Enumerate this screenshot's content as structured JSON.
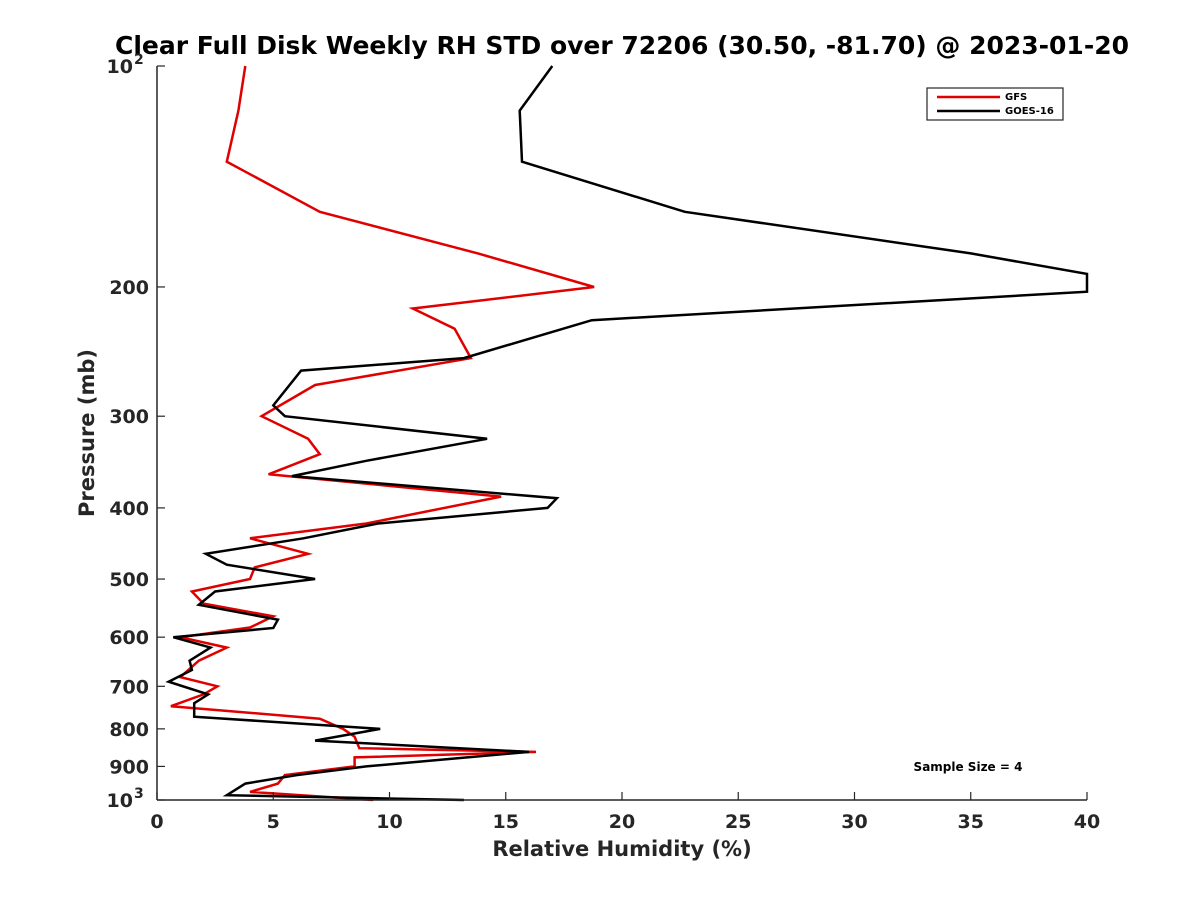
{
  "chart_data": {
    "type": "line",
    "title": "Clear Full Disk Weekly RH STD over 72206 (30.50, -81.70) @ 2023-01-20",
    "xlabel": "Relative Humidity (%)",
    "ylabel": "Pressure (mb)",
    "xlim": [
      0,
      40
    ],
    "ylim": [
      100,
      1000
    ],
    "y_scale": "log",
    "y_reversed": true,
    "grid": false,
    "legend_position": "top-right",
    "x_ticks": [
      0,
      5,
      10,
      15,
      20,
      25,
      30,
      35,
      40
    ],
    "x_tick_labels": [
      "0",
      "5",
      "10",
      "15",
      "20",
      "25",
      "30",
      "35",
      "40"
    ],
    "y_ticks": [
      100,
      200,
      300,
      400,
      500,
      600,
      700,
      800,
      900,
      1000
    ],
    "y_tick_labels": [
      {
        "base": "10",
        "exp": "2"
      },
      {
        "base": "200",
        "exp": ""
      },
      {
        "base": "300",
        "exp": ""
      },
      {
        "base": "400",
        "exp": ""
      },
      {
        "base": "500",
        "exp": ""
      },
      {
        "base": "600",
        "exp": ""
      },
      {
        "base": "700",
        "exp": ""
      },
      {
        "base": "800",
        "exp": ""
      },
      {
        "base": "900",
        "exp": ""
      },
      {
        "base": "10",
        "exp": "3"
      }
    ],
    "annotation": "Sample Size = 4",
    "series": [
      {
        "name": "GFS",
        "color": "#e00000",
        "points": [
          {
            "p": 100,
            "x": 3.8
          },
          {
            "p": 115,
            "x": 3.5
          },
          {
            "p": 135,
            "x": 3.0
          },
          {
            "p": 158,
            "x": 7.0
          },
          {
            "p": 180,
            "x": 13.8
          },
          {
            "p": 200,
            "x": 18.8
          },
          {
            "p": 214,
            "x": 11.0
          },
          {
            "p": 228,
            "x": 12.8
          },
          {
            "p": 250,
            "x": 13.5
          },
          {
            "p": 272,
            "x": 6.8
          },
          {
            "p": 300,
            "x": 4.5
          },
          {
            "p": 322,
            "x": 6.5
          },
          {
            "p": 338,
            "x": 7.0
          },
          {
            "p": 360,
            "x": 4.8
          },
          {
            "p": 386,
            "x": 14.8
          },
          {
            "p": 420,
            "x": 9.0
          },
          {
            "p": 440,
            "x": 4.0
          },
          {
            "p": 462,
            "x": 6.5
          },
          {
            "p": 482,
            "x": 4.2
          },
          {
            "p": 500,
            "x": 4.0
          },
          {
            "p": 520,
            "x": 1.5
          },
          {
            "p": 540,
            "x": 2.0
          },
          {
            "p": 562,
            "x": 5.0
          },
          {
            "p": 582,
            "x": 4.0
          },
          {
            "p": 600,
            "x": 1.0
          },
          {
            "p": 620,
            "x": 3.0
          },
          {
            "p": 646,
            "x": 1.8
          },
          {
            "p": 680,
            "x": 1.0
          },
          {
            "p": 700,
            "x": 2.6
          },
          {
            "p": 718,
            "x": 2.0
          },
          {
            "p": 745,
            "x": 0.6
          },
          {
            "p": 775,
            "x": 7.0
          },
          {
            "p": 800,
            "x": 8.0
          },
          {
            "p": 820,
            "x": 8.5
          },
          {
            "p": 850,
            "x": 8.7
          },
          {
            "p": 860,
            "x": 16.3
          },
          {
            "p": 875,
            "x": 8.5
          },
          {
            "p": 900,
            "x": 8.5
          },
          {
            "p": 925,
            "x": 5.5
          },
          {
            "p": 950,
            "x": 5.2
          },
          {
            "p": 975,
            "x": 4.0
          },
          {
            "p": 1000,
            "x": 9.3
          }
        ]
      },
      {
        "name": "GOES-16",
        "color": "#000000",
        "points": [
          {
            "p": 100,
            "x": 17.0
          },
          {
            "p": 115,
            "x": 15.6
          },
          {
            "p": 135,
            "x": 15.7
          },
          {
            "p": 158,
            "x": 22.7
          },
          {
            "p": 180,
            "x": 35.0
          },
          {
            "p": 192,
            "x": 40.0
          },
          {
            "p": 203,
            "x": 40.0
          },
          {
            "p": 222,
            "x": 18.7
          },
          {
            "p": 250,
            "x": 13.2
          },
          {
            "p": 260,
            "x": 6.2
          },
          {
            "p": 290,
            "x": 5.0
          },
          {
            "p": 300,
            "x": 5.5
          },
          {
            "p": 322,
            "x": 14.2
          },
          {
            "p": 345,
            "x": 9.0
          },
          {
            "p": 362,
            "x": 5.8
          },
          {
            "p": 388,
            "x": 17.2
          },
          {
            "p": 400,
            "x": 16.8
          },
          {
            "p": 420,
            "x": 9.5
          },
          {
            "p": 440,
            "x": 6.3
          },
          {
            "p": 462,
            "x": 2.1
          },
          {
            "p": 478,
            "x": 3.0
          },
          {
            "p": 500,
            "x": 6.8
          },
          {
            "p": 520,
            "x": 2.5
          },
          {
            "p": 542,
            "x": 1.8
          },
          {
            "p": 568,
            "x": 5.2
          },
          {
            "p": 583,
            "x": 5.0
          },
          {
            "p": 600,
            "x": 0.7
          },
          {
            "p": 620,
            "x": 2.3
          },
          {
            "p": 646,
            "x": 1.4
          },
          {
            "p": 665,
            "x": 1.5
          },
          {
            "p": 690,
            "x": 0.5
          },
          {
            "p": 718,
            "x": 2.2
          },
          {
            "p": 738,
            "x": 1.6
          },
          {
            "p": 770,
            "x": 1.6
          },
          {
            "p": 800,
            "x": 9.6
          },
          {
            "p": 830,
            "x": 6.8
          },
          {
            "p": 860,
            "x": 16.0
          },
          {
            "p": 900,
            "x": 9.0
          },
          {
            "p": 925,
            "x": 6.0
          },
          {
            "p": 950,
            "x": 3.8
          },
          {
            "p": 985,
            "x": 3.0
          },
          {
            "p": 1000,
            "x": 13.2
          }
        ]
      }
    ]
  }
}
